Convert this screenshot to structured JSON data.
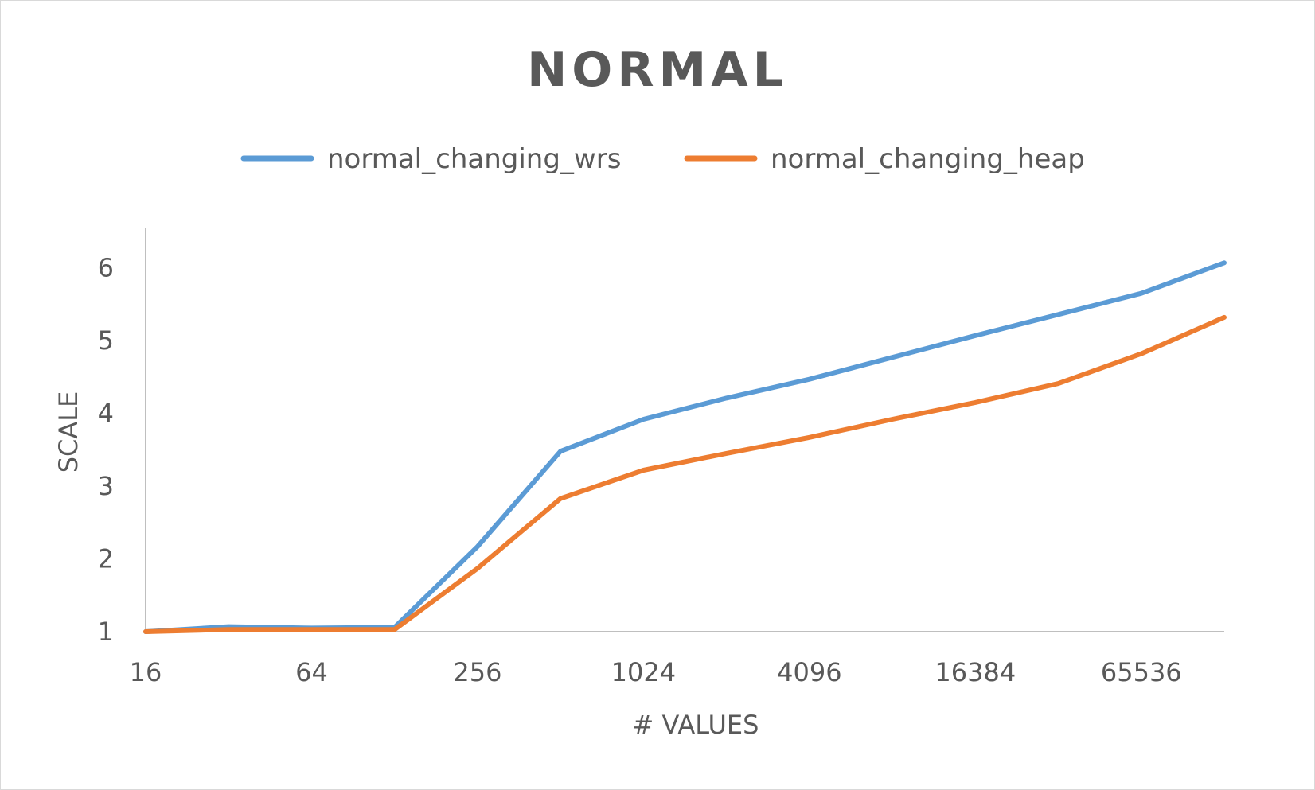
{
  "chart_data": {
    "type": "line",
    "title": "NORMAL",
    "xlabel": "# VALUES",
    "ylabel": "SCALE",
    "x_scale": "log2",
    "x": [
      16,
      32,
      64,
      128,
      256,
      512,
      1024,
      2048,
      4096,
      8192,
      16384,
      32768,
      65536,
      131072
    ],
    "x_tick_labels": [
      "16",
      "64",
      "256",
      "1024",
      "4096",
      "16384",
      "65536"
    ],
    "x_tick_values": [
      16,
      64,
      256,
      1024,
      4096,
      16384,
      65536
    ],
    "y_ticks": [
      1,
      2,
      3,
      4,
      5,
      6
    ],
    "ylim": [
      1,
      6.5
    ],
    "grid": false,
    "legend_position": "top",
    "series": [
      {
        "name": "normal_changing_wrs",
        "color": "#5b9bd5",
        "values": [
          1.0,
          1.07,
          1.05,
          1.06,
          2.17,
          3.48,
          3.92,
          4.21,
          4.47,
          4.77,
          5.07,
          5.36,
          5.65,
          6.07
        ]
      },
      {
        "name": "normal_changing_heap",
        "color": "#ed7d31",
        "values": [
          1.0,
          1.03,
          1.03,
          1.03,
          1.87,
          2.83,
          3.22,
          3.45,
          3.67,
          3.92,
          4.15,
          4.41,
          4.82,
          5.32
        ]
      }
    ]
  },
  "colors": {
    "axis_line": "#bfbfbf",
    "text": "#595959",
    "border": "#d9d9d9"
  }
}
